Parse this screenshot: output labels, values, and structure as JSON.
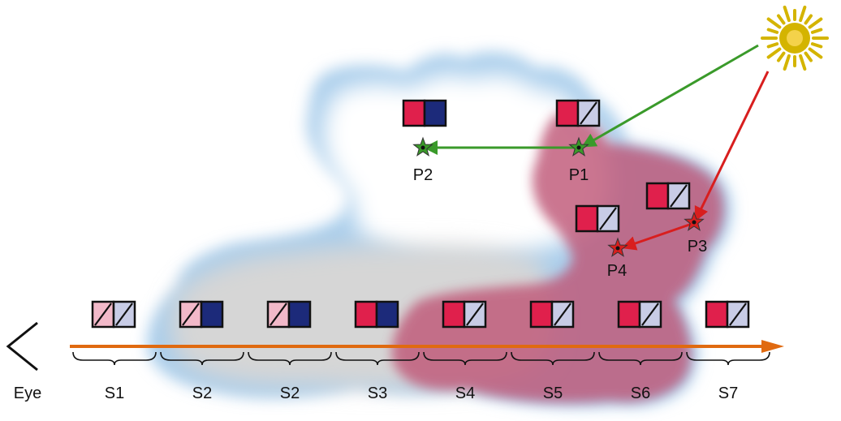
{
  "colors": {
    "red": "#e0204c",
    "navy": "#1c2a7a",
    "pink": "#f2b9c9",
    "lavender": "#c8cce6",
    "green_path": "#3a9a2a",
    "red_path": "#d81e1e",
    "eye_ray": "#e06a10",
    "sun": "#d4b400",
    "cloud_blue": "#a9cdeb",
    "cloud_white": "#ffffff",
    "cloud_grey": "#d6d6d6",
    "shadow": "#c05878"
  },
  "eye": {
    "label": "Eye",
    "icon": "eye-chevron-icon"
  },
  "sun": {
    "icon": "sun-icon"
  },
  "points": [
    {
      "id": "P1",
      "label": "P1",
      "path": "green"
    },
    {
      "id": "P2",
      "label": "P2",
      "path": "green"
    },
    {
      "id": "P3",
      "label": "P3",
      "path": "red"
    },
    {
      "id": "P4",
      "label": "P4",
      "path": "red"
    }
  ],
  "point_glyphs": [
    {
      "id": "P2",
      "left": "red",
      "right": "navy",
      "slash": false
    },
    {
      "id": "P1",
      "left": "red",
      "right": "lavender",
      "slash": true
    },
    {
      "id": "P3",
      "left": "red",
      "right": "lavender",
      "slash": true
    },
    {
      "id": "P4",
      "left": "red",
      "right": "lavender",
      "slash": true
    }
  ],
  "segments": [
    {
      "label": "S1",
      "left": "pink",
      "left_slash": true,
      "right": "lavender",
      "right_slash": true
    },
    {
      "label": "S2",
      "left": "pink",
      "left_slash": true,
      "right": "navy",
      "right_slash": false
    },
    {
      "label": "S2",
      "left": "pink",
      "left_slash": true,
      "right": "navy",
      "right_slash": false
    },
    {
      "label": "S3",
      "left": "red",
      "left_slash": false,
      "right": "navy",
      "right_slash": false
    },
    {
      "label": "S4",
      "left": "red",
      "left_slash": false,
      "right": "lavender",
      "right_slash": true
    },
    {
      "label": "S5",
      "left": "red",
      "left_slash": false,
      "right": "lavender",
      "right_slash": true
    },
    {
      "label": "S6",
      "left": "red",
      "left_slash": false,
      "right": "lavender",
      "right_slash": true
    },
    {
      "label": "S7",
      "left": "red",
      "left_slash": false,
      "right": "lavender",
      "right_slash": true
    }
  ]
}
